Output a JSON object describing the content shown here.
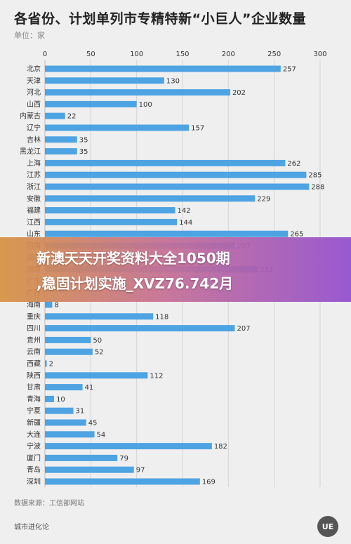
{
  "title": "各省份、计划单列市专精特新“小巨人”企业数量",
  "unit_label": "单位：家",
  "source": "数据来源：工信部网站",
  "brand": "城市进化论",
  "logo_text": "UE",
  "overlay": {
    "line1": "新澳天天开奖资料大全1050期",
    "line2": ",稳固计划实施_XVZ76.742月"
  },
  "colors": {
    "bar": "#4ea3e3",
    "grid": "#d6d6d6",
    "axis": "#bbbbbb"
  },
  "chart_data": {
    "type": "bar",
    "orientation": "horizontal",
    "title": "各省份、计划单列市专精特新“小巨人”企业数量",
    "xlim": [
      0,
      300
    ],
    "ticks": [
      0,
      50,
      100,
      150,
      200,
      250,
      300
    ],
    "tick_position": "top",
    "grid": true,
    "categories": [
      "北京",
      "天津",
      "河北",
      "山西",
      "内蒙古",
      "辽宁",
      "吉林",
      "黑龙江",
      "上海",
      "江苏",
      "浙江",
      "安徽",
      "福建",
      "江西",
      "山东",
      "河南",
      "湖北",
      "湖南",
      "广东",
      "广西",
      "海南",
      "重庆",
      "四川",
      "贵州",
      "云南",
      "西藏",
      "陕西",
      "甘肃",
      "青海",
      "宁夏",
      "新疆",
      "大连",
      "宁波",
      "厦门",
      "青岛",
      "深圳"
    ],
    "values": [
      257,
      130,
      202,
      100,
      22,
      157,
      35,
      35,
      262,
      285,
      288,
      229,
      142,
      144,
      265,
      207,
      null,
      232,
      null,
      null,
      8,
      118,
      207,
      50,
      52,
      2,
      112,
      41,
      10,
      31,
      45,
      54,
      182,
      79,
      97,
      169
    ]
  }
}
